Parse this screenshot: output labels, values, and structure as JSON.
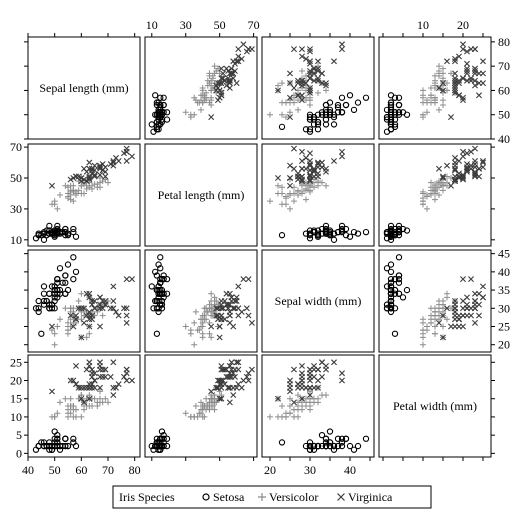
{
  "chart_data": {
    "type": "scatter",
    "variables": [
      {
        "label": "Sepal length (mm)",
        "range": [
          40,
          82
        ],
        "ticks": [
          40,
          50,
          60,
          70,
          80
        ]
      },
      {
        "label": "Petal length (mm)",
        "range": [
          6,
          72
        ],
        "ticks": [
          10,
          30,
          50,
          70
        ]
      },
      {
        "label": "Sepal width (mm)",
        "range": [
          18,
          46
        ],
        "ticks": [
          20,
          25,
          30,
          35,
          40,
          45
        ]
      },
      {
        "label": "Petal width (mm)",
        "range": [
          -1,
          27
        ],
        "ticks": [
          0,
          5,
          10,
          15,
          20,
          25
        ]
      }
    ],
    "axes": {
      "left": [
        {
          "row": 1,
          "var": 1,
          "ticks": [
            10,
            30,
            50,
            70
          ]
        },
        {
          "row": 3,
          "var": 3,
          "ticks": [
            0,
            5,
            10,
            15,
            20,
            25
          ]
        }
      ],
      "right": [
        {
          "row": 0,
          "var": 0,
          "ticks": [
            40,
            50,
            60,
            70,
            80
          ]
        },
        {
          "row": 2,
          "var": 2,
          "ticks": [
            20,
            25,
            30,
            35,
            40,
            45
          ]
        }
      ],
      "top": [
        {
          "col": 1,
          "var": 1,
          "ticks": [
            10,
            30,
            50,
            70
          ]
        },
        {
          "col": 3,
          "var": 3,
          "ticks": [
            10,
            20
          ]
        }
      ],
      "bottom": [
        {
          "col": 0,
          "var": 0,
          "ticks": [
            40,
            50,
            60,
            70,
            80
          ]
        },
        {
          "col": 2,
          "var": 2,
          "ticks": [
            20,
            30,
            40
          ]
        }
      ]
    },
    "legend": {
      "title": "Iris Species",
      "position": "bottom",
      "entries": [
        {
          "symbol": "o",
          "label": "Setosa"
        },
        {
          "symbol": "+",
          "label": "Versicolor"
        },
        {
          "symbol": "x",
          "label": "Virginica"
        }
      ]
    },
    "series": [
      {
        "name": "Setosa",
        "marker": "o",
        "color": "#000000",
        "fields": [
          "sepal_length",
          "sepal_width",
          "petal_length",
          "petal_width"
        ],
        "points": [
          [
            51,
            35,
            14,
            2
          ],
          [
            49,
            30,
            14,
            2
          ],
          [
            47,
            32,
            13,
            2
          ],
          [
            46,
            31,
            15,
            2
          ],
          [
            50,
            36,
            14,
            2
          ],
          [
            54,
            39,
            17,
            4
          ],
          [
            46,
            34,
            14,
            3
          ],
          [
            50,
            34,
            15,
            2
          ],
          [
            44,
            29,
            14,
            2
          ],
          [
            49,
            31,
            15,
            1
          ],
          [
            54,
            37,
            15,
            2
          ],
          [
            48,
            34,
            16,
            2
          ],
          [
            48,
            30,
            14,
            1
          ],
          [
            43,
            30,
            11,
            1
          ],
          [
            58,
            40,
            12,
            2
          ],
          [
            57,
            44,
            15,
            4
          ],
          [
            54,
            39,
            13,
            4
          ],
          [
            51,
            35,
            14,
            3
          ],
          [
            57,
            38,
            17,
            3
          ],
          [
            51,
            38,
            15,
            3
          ],
          [
            54,
            34,
            17,
            2
          ],
          [
            51,
            37,
            15,
            4
          ],
          [
            46,
            36,
            10,
            2
          ],
          [
            51,
            33,
            17,
            5
          ],
          [
            48,
            34,
            19,
            2
          ],
          [
            50,
            30,
            16,
            2
          ],
          [
            50,
            34,
            16,
            4
          ],
          [
            52,
            35,
            15,
            2
          ],
          [
            52,
            34,
            14,
            2
          ],
          [
            47,
            32,
            16,
            2
          ],
          [
            48,
            31,
            16,
            2
          ],
          [
            54,
            34,
            15,
            4
          ],
          [
            52,
            41,
            15,
            1
          ],
          [
            55,
            42,
            14,
            2
          ],
          [
            49,
            31,
            15,
            2
          ],
          [
            50,
            32,
            12,
            2
          ],
          [
            55,
            35,
            13,
            2
          ],
          [
            49,
            36,
            14,
            1
          ],
          [
            44,
            30,
            13,
            2
          ],
          [
            51,
            34,
            15,
            2
          ],
          [
            50,
            35,
            13,
            3
          ],
          [
            45,
            23,
            13,
            3
          ],
          [
            44,
            32,
            13,
            2
          ],
          [
            50,
            35,
            16,
            6
          ],
          [
            51,
            38,
            19,
            4
          ],
          [
            48,
            30,
            14,
            3
          ],
          [
            51,
            38,
            16,
            2
          ],
          [
            46,
            32,
            14,
            2
          ],
          [
            53,
            37,
            15,
            2
          ],
          [
            50,
            33,
            14,
            2
          ]
        ]
      },
      {
        "name": "Versicolor",
        "marker": "+",
        "color": "#8c8c8c",
        "fields": [
          "sepal_length",
          "sepal_width",
          "petal_length",
          "petal_width"
        ],
        "points": [
          [
            70,
            32,
            47,
            14
          ],
          [
            64,
            32,
            45,
            15
          ],
          [
            69,
            31,
            49,
            15
          ],
          [
            55,
            23,
            40,
            13
          ],
          [
            65,
            28,
            46,
            15
          ],
          [
            57,
            28,
            45,
            13
          ],
          [
            63,
            33,
            47,
            16
          ],
          [
            49,
            24,
            33,
            10
          ],
          [
            66,
            29,
            46,
            13
          ],
          [
            52,
            27,
            39,
            14
          ],
          [
            50,
            20,
            35,
            10
          ],
          [
            59,
            30,
            42,
            15
          ],
          [
            60,
            22,
            40,
            10
          ],
          [
            61,
            29,
            47,
            14
          ],
          [
            56,
            29,
            36,
            13
          ],
          [
            67,
            31,
            44,
            14
          ],
          [
            56,
            30,
            45,
            15
          ],
          [
            58,
            27,
            41,
            10
          ],
          [
            62,
            22,
            45,
            15
          ],
          [
            56,
            25,
            39,
            11
          ],
          [
            59,
            32,
            48,
            18
          ],
          [
            61,
            28,
            40,
            13
          ],
          [
            63,
            25,
            49,
            15
          ],
          [
            61,
            28,
            47,
            12
          ],
          [
            64,
            29,
            43,
            13
          ],
          [
            66,
            30,
            44,
            14
          ],
          [
            68,
            28,
            48,
            14
          ],
          [
            67,
            30,
            50,
            17
          ],
          [
            60,
            29,
            45,
            15
          ],
          [
            57,
            26,
            35,
            10
          ],
          [
            55,
            24,
            38,
            11
          ],
          [
            55,
            24,
            37,
            10
          ],
          [
            58,
            27,
            39,
            12
          ],
          [
            60,
            27,
            51,
            16
          ],
          [
            54,
            30,
            45,
            15
          ],
          [
            60,
            34,
            45,
            16
          ],
          [
            67,
            31,
            47,
            15
          ],
          [
            63,
            23,
            44,
            13
          ],
          [
            56,
            30,
            41,
            13
          ],
          [
            55,
            25,
            40,
            13
          ],
          [
            55,
            26,
            44,
            12
          ],
          [
            61,
            30,
            46,
            14
          ],
          [
            58,
            26,
            40,
            12
          ],
          [
            50,
            23,
            33,
            10
          ],
          [
            56,
            27,
            42,
            13
          ],
          [
            57,
            30,
            42,
            12
          ],
          [
            57,
            29,
            42,
            13
          ],
          [
            62,
            29,
            43,
            13
          ],
          [
            51,
            25,
            30,
            11
          ],
          [
            57,
            28,
            41,
            13
          ]
        ]
      },
      {
        "name": "Virginica",
        "marker": "x",
        "color": "#3c3c3c",
        "fields": [
          "sepal_length",
          "sepal_width",
          "petal_length",
          "petal_width"
        ],
        "points": [
          [
            63,
            33,
            60,
            25
          ],
          [
            58,
            27,
            51,
            19
          ],
          [
            71,
            30,
            59,
            21
          ],
          [
            63,
            29,
            56,
            18
          ],
          [
            65,
            30,
            58,
            22
          ],
          [
            76,
            30,
            66,
            21
          ],
          [
            49,
            25,
            45,
            17
          ],
          [
            73,
            29,
            63,
            18
          ],
          [
            67,
            25,
            58,
            18
          ],
          [
            72,
            36,
            61,
            25
          ],
          [
            65,
            32,
            51,
            20
          ],
          [
            64,
            27,
            53,
            19
          ],
          [
            68,
            30,
            55,
            21
          ],
          [
            57,
            25,
            50,
            20
          ],
          [
            58,
            28,
            51,
            24
          ],
          [
            64,
            32,
            53,
            23
          ],
          [
            65,
            30,
            55,
            18
          ],
          [
            77,
            38,
            67,
            22
          ],
          [
            77,
            26,
            69,
            23
          ],
          [
            60,
            22,
            50,
            15
          ],
          [
            69,
            32,
            57,
            23
          ],
          [
            56,
            28,
            49,
            20
          ],
          [
            77,
            28,
            67,
            20
          ],
          [
            63,
            27,
            49,
            18
          ],
          [
            67,
            33,
            57,
            21
          ],
          [
            72,
            32,
            60,
            18
          ],
          [
            62,
            28,
            48,
            18
          ],
          [
            61,
            30,
            49,
            18
          ],
          [
            64,
            28,
            56,
            21
          ],
          [
            72,
            30,
            58,
            16
          ],
          [
            74,
            28,
            61,
            19
          ],
          [
            79,
            38,
            64,
            20
          ],
          [
            64,
            28,
            56,
            22
          ],
          [
            63,
            28,
            51,
            15
          ],
          [
            61,
            26,
            56,
            14
          ],
          [
            77,
            30,
            61,
            23
          ],
          [
            63,
            34,
            56,
            24
          ],
          [
            64,
            31,
            55,
            18
          ],
          [
            60,
            30,
            48,
            18
          ],
          [
            69,
            31,
            54,
            21
          ],
          [
            67,
            31,
            56,
            24
          ],
          [
            69,
            31,
            51,
            23
          ],
          [
            58,
            27,
            51,
            19
          ],
          [
            68,
            32,
            59,
            23
          ],
          [
            67,
            33,
            57,
            25
          ],
          [
            67,
            30,
            52,
            23
          ],
          [
            63,
            25,
            50,
            19
          ],
          [
            65,
            30,
            52,
            20
          ],
          [
            62,
            34,
            54,
            23
          ],
          [
            59,
            30,
            51,
            18
          ]
        ]
      }
    ]
  }
}
